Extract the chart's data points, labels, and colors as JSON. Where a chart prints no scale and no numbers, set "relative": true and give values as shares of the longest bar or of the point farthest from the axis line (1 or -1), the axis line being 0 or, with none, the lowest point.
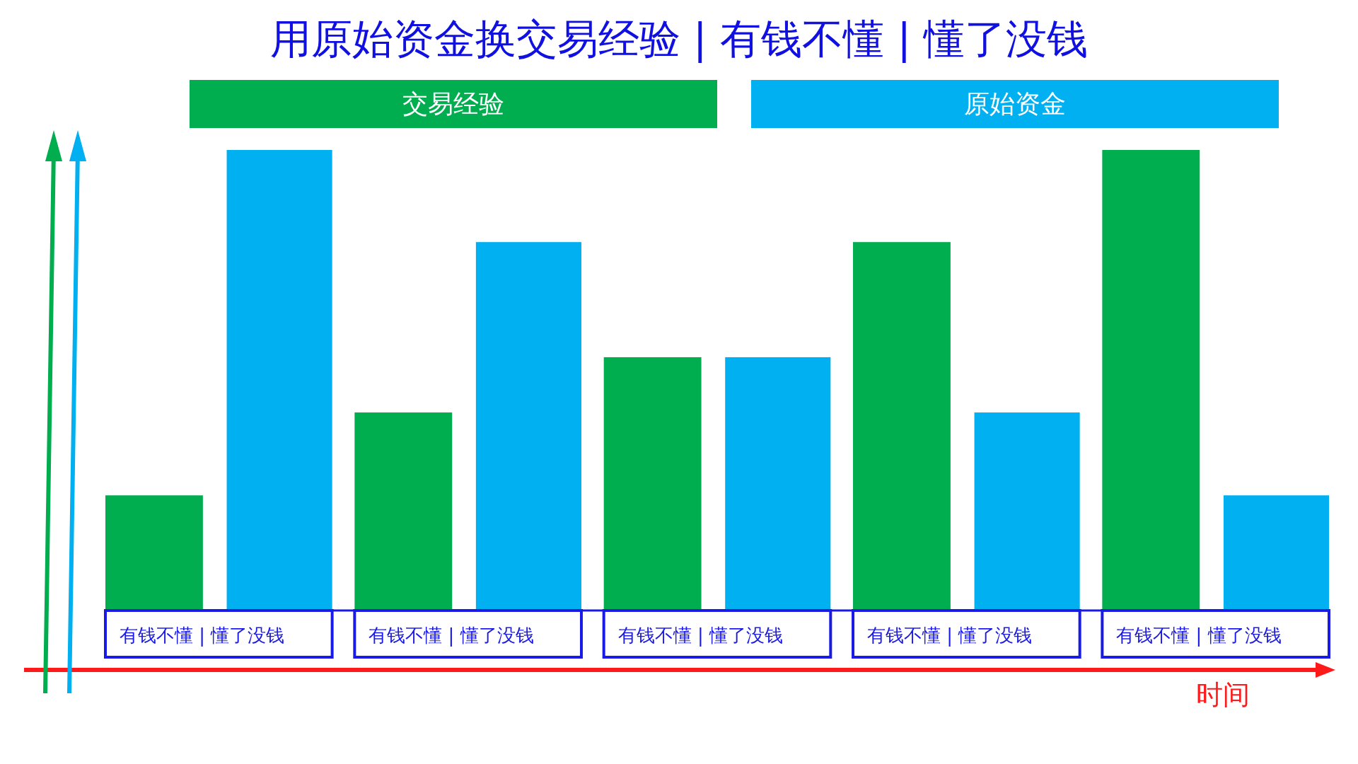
{
  "chart_data": {
    "type": "bar",
    "title": "用原始资金换交易经验 | 有钱不懂 | 懂了没钱",
    "xlabel": "时间",
    "relative": true,
    "legend": "top",
    "categories": [
      "有钱不懂 | 懂了没钱",
      "有钱不懂 | 懂了没钱",
      "有钱不懂 | 懂了没钱",
      "有钱不懂 | 懂了没钱",
      "有钱不懂 | 懂了没钱"
    ],
    "series": [
      {
        "name": "交易经验",
        "color": "#00ad4f",
        "values": [
          0.25,
          0.43,
          0.55,
          0.8,
          1
        ]
      },
      {
        "name": "原始资金",
        "color": "#00b0f0",
        "values": [
          1,
          0.8,
          0.55,
          0.43,
          0.25
        ]
      }
    ]
  }
}
